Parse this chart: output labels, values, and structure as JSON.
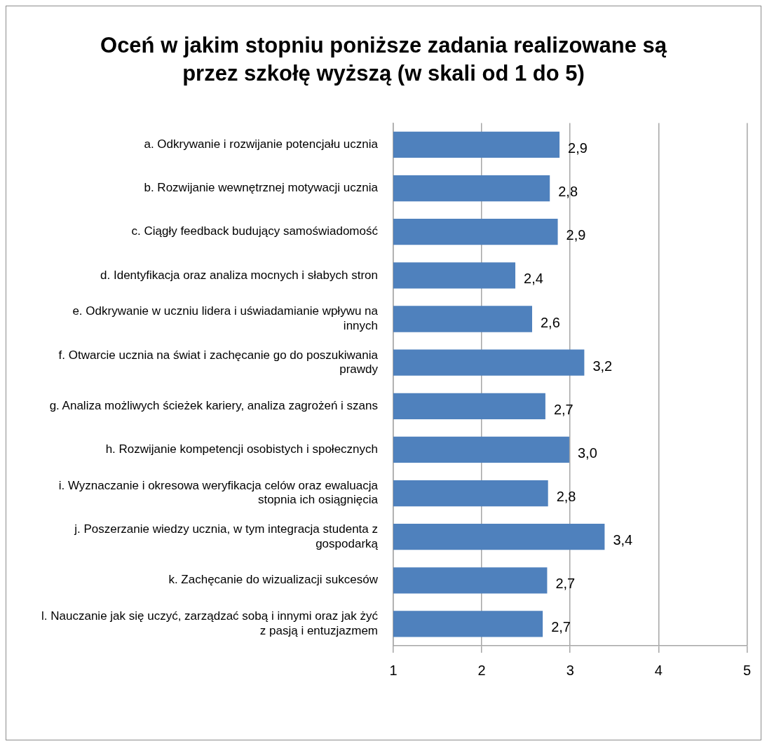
{
  "chart_data": {
    "type": "bar",
    "orientation": "horizontal",
    "title": "Oceń w jakim stopniu poniższe zadania realizowane są przez szkołę wyższą (w skali od 1 do 5)",
    "categories": [
      "a. Odkrywanie i rozwijanie potencjału ucznia",
      "b. Rozwijanie wewnętrznej motywacji ucznia",
      "c. Ciągły feedback budujący samoświadomość",
      "d. Identyfikacja oraz analiza mocnych i słabych stron",
      "e. Odkrywanie w uczniu lidera i uświadamianie wpływu na innych",
      "f. Otwarcie ucznia na świat i zachęcanie go do poszukiwania prawdy",
      "g. Analiza możliwych ścieżek kariery, analiza zagrożeń i szans",
      "h. Rozwijanie kompetencji osobistych i społecznych",
      "i. Wyznaczanie i okresowa weryfikacja celów oraz ewaluacja stopnia ich osiągnięcia",
      "j. Poszerzanie wiedzy ucznia, w tym integracja studenta z gospodarką",
      "k. Zachęcanie do wizualizacji sukcesów",
      "l. Nauczanie jak się uczyć, zarządzać sobą i innymi oraz jak żyć z pasją i entuzjazmem"
    ],
    "values": [
      2.88,
      2.77,
      2.86,
      2.38,
      2.57,
      3.16,
      2.72,
      2.99,
      2.75,
      3.39,
      2.74,
      2.69
    ],
    "value_labels": [
      "2,9",
      "2,8",
      "2,9",
      "2,4",
      "2,6",
      "3,2",
      "2,7",
      "3,0",
      "2,8",
      "3,4",
      "2,7",
      "2,7"
    ],
    "color": "#4f81bd",
    "xlim": [
      1,
      5
    ],
    "xticks": [
      1,
      2,
      3,
      4,
      5
    ],
    "grid": "x",
    "legend": false
  }
}
